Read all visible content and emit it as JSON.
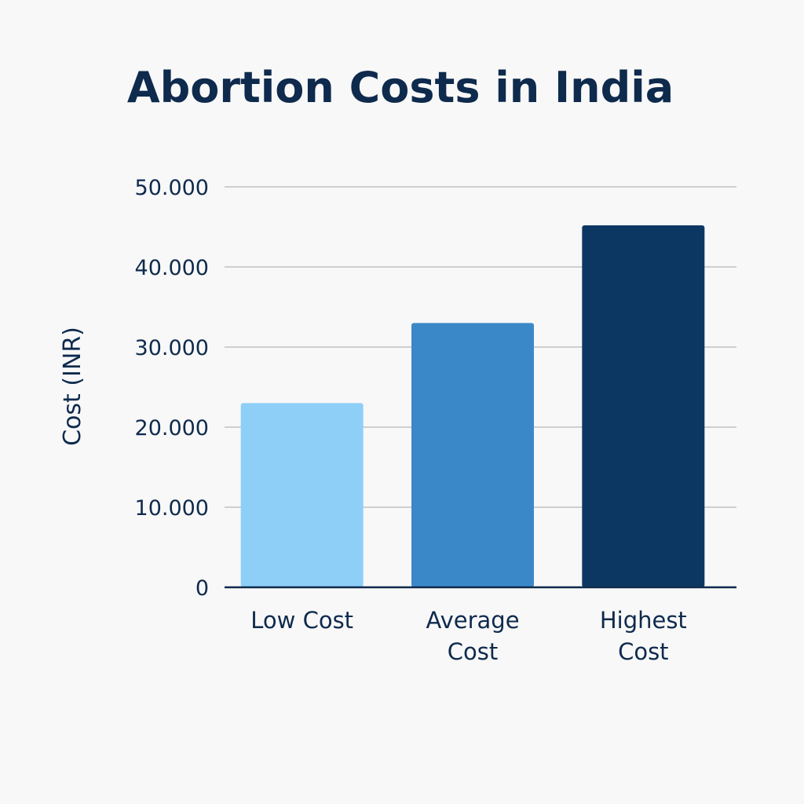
{
  "chart_data": {
    "type": "bar",
    "title": "Abortion Costs in India",
    "xlabel": "",
    "ylabel": "Cost (INR)",
    "ylim": [
      0,
      50000
    ],
    "yticks": [
      0,
      10000,
      20000,
      30000,
      40000,
      50000
    ],
    "ytick_labels": [
      "0",
      "10.000",
      "20.000",
      "30.000",
      "40.000",
      "50.000"
    ],
    "grid": true,
    "legend": "none",
    "categories": [
      [
        "Low Cost"
      ],
      [
        "Average",
        "Cost"
      ],
      [
        "Highest",
        "Cost"
      ]
    ],
    "values": [
      23000,
      33000,
      45200
    ],
    "colors": [
      "#8ecff7",
      "#3b88c9",
      "#0c3762"
    ]
  }
}
